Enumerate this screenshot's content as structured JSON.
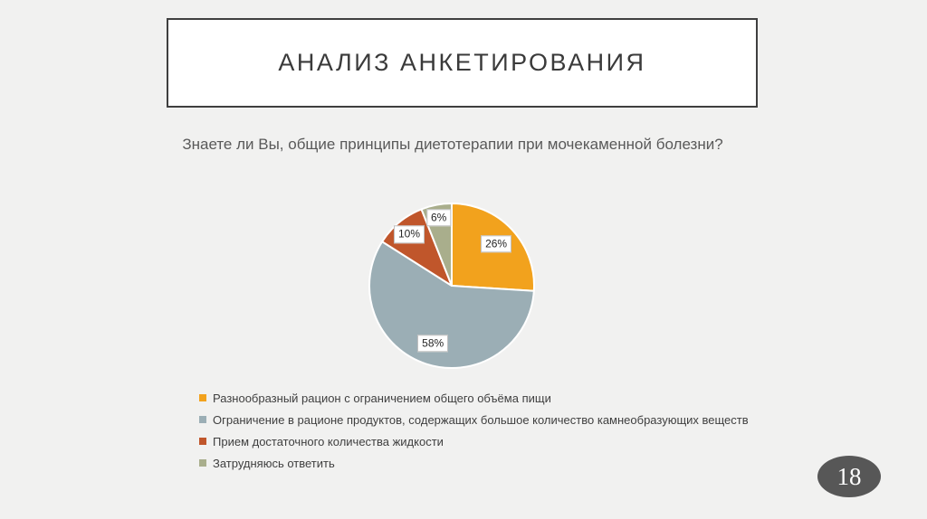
{
  "slide": {
    "title": "АНАЛИЗ АНКЕТИРОВАНИЯ",
    "question": "Знаете ли Вы, общие принципы диетотерапии при мочекаменной болезни?",
    "page_number": "18"
  },
  "colors": {
    "background": "#f1f1f0",
    "title_border": "#3f3f3f",
    "title_text": "#3a3a3a",
    "question_text": "#595959",
    "legend_text": "#3f3f3f",
    "page_badge_fill": "#575757",
    "page_badge_text": "#ffffff",
    "slice_separator": "#ffffff"
  },
  "chart_data": {
    "type": "pie",
    "title": "Знаете ли Вы, общие принципы диетотерапии при мочекаменной болезни?",
    "direction": "clockwise",
    "start_angle_deg": 0,
    "legend_position": "bottom-left",
    "slices": [
      {
        "label": "Разнообразный рацион с ограничением общего объёма пищи",
        "value": 26,
        "percent_label": "26%",
        "color": "#f2a21d",
        "label_r_frac": 0.74
      },
      {
        "label": "Ограничение в рационе продуктов, содержащих большое количество камнеобразующих веществ",
        "value": 58,
        "percent_label": "58%",
        "color": "#9baeb5",
        "label_r_frac": 0.74
      },
      {
        "label": "Прием достаточного количества жидкости",
        "value": 10,
        "percent_label": "10%",
        "color": "#c0562b",
        "label_r_frac": 0.81
      },
      {
        "label": "Затрудняюсь ответить",
        "value": 6,
        "percent_label": "6%",
        "color": "#a9ae8c",
        "label_r_frac": 0.84
      }
    ]
  }
}
